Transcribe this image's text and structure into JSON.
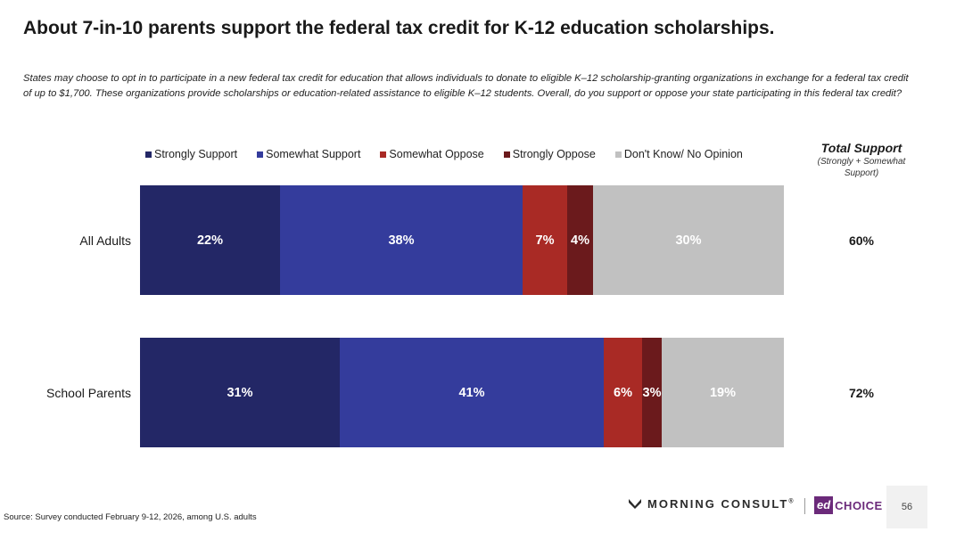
{
  "title": "About 7-in-10 parents support the federal tax credit for K-12 education scholarships.",
  "question": "States may choose to opt in to participate in a new federal tax credit for education that allows individuals to donate to eligible K–12 scholarship-granting organizations in exchange for a federal tax credit of up to $1,700. These organizations provide scholarships or education-related assistance to eligible K–12 students. Overall, do you support or oppose your state participating in this federal tax credit?",
  "total_support_header": {
    "title": "Total Support",
    "subtitle": "(Strongly + Somewhat Support)"
  },
  "chart_data": {
    "type": "bar",
    "orientation": "horizontal",
    "stacked": true,
    "categories": [
      "All Adults",
      "School Parents"
    ],
    "series": [
      {
        "name": "Strongly Support",
        "color": "#232766",
        "values": [
          22,
          31
        ],
        "labels": [
          "22%",
          "31%"
        ]
      },
      {
        "name": "Somewhat Support",
        "color": "#343c9c",
        "values": [
          38,
          41
        ],
        "labels": [
          "38%",
          "41%"
        ]
      },
      {
        "name": "Somewhat Oppose",
        "color": "#a92a25",
        "values": [
          7,
          6
        ],
        "labels": [
          "7%",
          "6%"
        ]
      },
      {
        "name": "Strongly Oppose",
        "color": "#6b1a1c",
        "values": [
          4,
          3
        ],
        "labels": [
          "4%",
          "3%"
        ]
      },
      {
        "name": "Don't Know/ No Opinion",
        "color": "#c1c1c1",
        "values": [
          30,
          19
        ],
        "labels": [
          "30%",
          "19%"
        ]
      }
    ],
    "total_support": [
      "60%",
      "72%"
    ],
    "legend_position": "top",
    "grid": false
  },
  "source": "Source: Survey conducted February 9-12, 2026, among U.S. adults",
  "logos": {
    "morning_consult": "MORNING CONSULT",
    "morning_consult_mark": "®",
    "edchoice_badge": "ed",
    "edchoice_text": "CHOICE"
  },
  "page_number": "56"
}
